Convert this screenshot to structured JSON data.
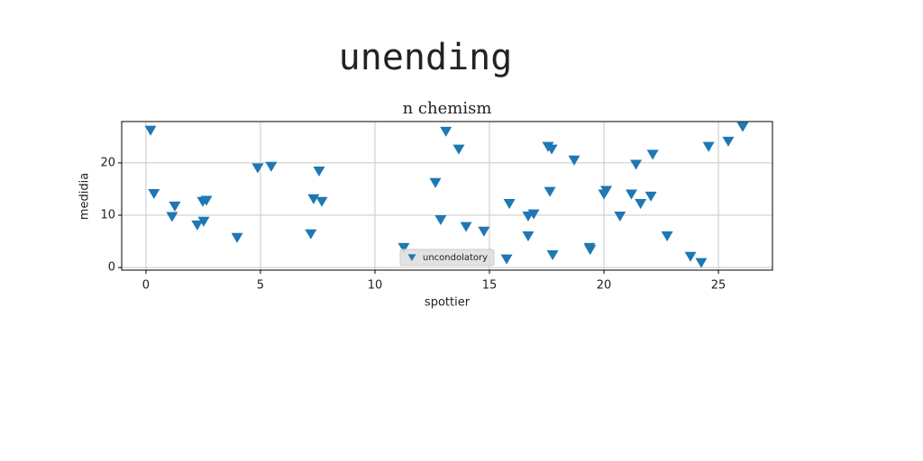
{
  "chart_data": {
    "type": "scatter",
    "title": "unending",
    "subtitle": "n chemism",
    "x_label": "spottier",
    "y_label": "medidia",
    "series": [
      {
        "name": "uncondolatory",
        "color": "#1f77b4",
        "x": [
          0.2,
          0.35,
          1.26,
          1.14,
          2.24,
          2.48,
          2.64,
          2.52,
          3.98,
          4.88,
          5.47,
          7.2,
          7.32,
          7.68,
          7.56,
          11.26,
          12.64,
          12.87,
          13.1,
          13.66,
          13.98,
          14.76,
          15.75,
          15.87,
          16.69,
          16.69,
          16.93,
          17.56,
          17.72,
          17.64,
          17.76,
          18.7,
          19.37,
          19.4,
          20.0,
          20.1,
          20.7,
          21.2,
          21.4,
          21.6,
          22.05,
          22.13,
          22.76,
          23.78,
          24.25,
          24.57,
          25.43,
          26.06
        ],
        "values": [
          26.2,
          14.1,
          11.7,
          9.7,
          8.1,
          12.6,
          12.8,
          8.8,
          5.7,
          19.0,
          19.3,
          6.4,
          13.1,
          12.6,
          18.4,
          3.8,
          16.2,
          9.1,
          26.0,
          22.6,
          7.8,
          6.9,
          1.6,
          12.2,
          9.8,
          6.0,
          10.2,
          23.1,
          22.6,
          14.5,
          2.4,
          20.5,
          3.8,
          3.4,
          14.0,
          14.7,
          9.8,
          14.0,
          19.7,
          12.2,
          13.6,
          21.6,
          6.0,
          2.1,
          0.9,
          23.1,
          24.1,
          26.9
        ]
      }
    ],
    "xlim": [
      -1.06,
      27.36
    ],
    "xticks": [
      0,
      5,
      10,
      15,
      20,
      25
    ],
    "ylim": [
      -0.5,
      27.9
    ],
    "yticks": [
      0,
      10,
      20
    ],
    "grid": true,
    "legend": "lower center"
  }
}
